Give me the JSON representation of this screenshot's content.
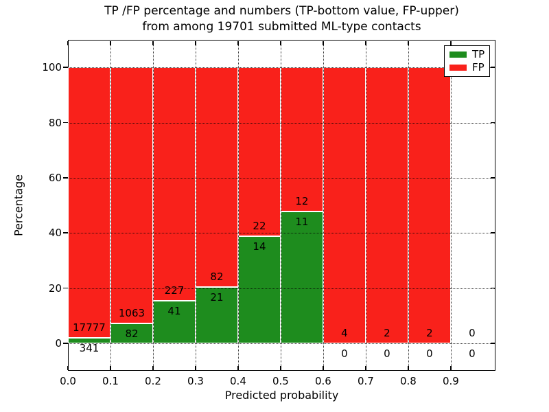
{
  "chart_data": {
    "type": "bar",
    "stacked": true,
    "title": "TP /FP percentage and numbers (TP-bottom value, FP-upper)",
    "subtitle": "from among 19701 submitted ML-type contacts",
    "xlabel": "Predicted probability",
    "ylabel": "Percentage",
    "total_submitted_contacts": 19701,
    "x_tick_labels": [
      "0.0",
      "0.1",
      "0.2",
      "0.3",
      "0.4",
      "0.5",
      "0.6",
      "0.7",
      "0.8",
      "0.9"
    ],
    "y_tick_values": [
      0,
      20,
      40,
      60,
      80,
      100
    ],
    "y_tick_labels": [
      "0",
      "20",
      "40",
      "60",
      "80",
      "100"
    ],
    "xlim": [
      0,
      1.005
    ],
    "ylim": [
      -10,
      110
    ],
    "bin_width": 0.1,
    "grid": {
      "style": "dotted",
      "color": "#000000",
      "above_bars": true
    },
    "colors": {
      "tp": "#1e8c1e",
      "fp": "#f9211b",
      "bar_edge": "#ffffff",
      "text": "#000000"
    },
    "legend": {
      "position": "upper right",
      "entries": [
        {
          "label": "TP",
          "color_key": "tp"
        },
        {
          "label": "FP",
          "color_key": "fp"
        }
      ]
    },
    "bins": [
      {
        "x_start": 0.0,
        "x_end": 0.1,
        "tp_count": 341,
        "fp_count": 17777
      },
      {
        "x_start": 0.1,
        "x_end": 0.2,
        "tp_count": 82,
        "fp_count": 1063
      },
      {
        "x_start": 0.2,
        "x_end": 0.3,
        "tp_count": 41,
        "fp_count": 227
      },
      {
        "x_start": 0.3,
        "x_end": 0.4,
        "tp_count": 21,
        "fp_count": 82
      },
      {
        "x_start": 0.4,
        "x_end": 0.5,
        "tp_count": 14,
        "fp_count": 22
      },
      {
        "x_start": 0.5,
        "x_end": 0.6,
        "tp_count": 11,
        "fp_count": 12
      },
      {
        "x_start": 0.6,
        "x_end": 0.7,
        "tp_count": 0,
        "fp_count": 4
      },
      {
        "x_start": 0.7,
        "x_end": 0.8,
        "tp_count": 0,
        "fp_count": 2
      },
      {
        "x_start": 0.8,
        "x_end": 0.9,
        "tp_count": 0,
        "fp_count": 2
      },
      {
        "x_start": 0.9,
        "x_end": 1.0,
        "tp_count": 0,
        "fp_count": 0
      }
    ],
    "bar_height_rule": "green TP bar height = tp_count/(tp_count+fp_count)*100; red FP bar fills up to 100%"
  }
}
